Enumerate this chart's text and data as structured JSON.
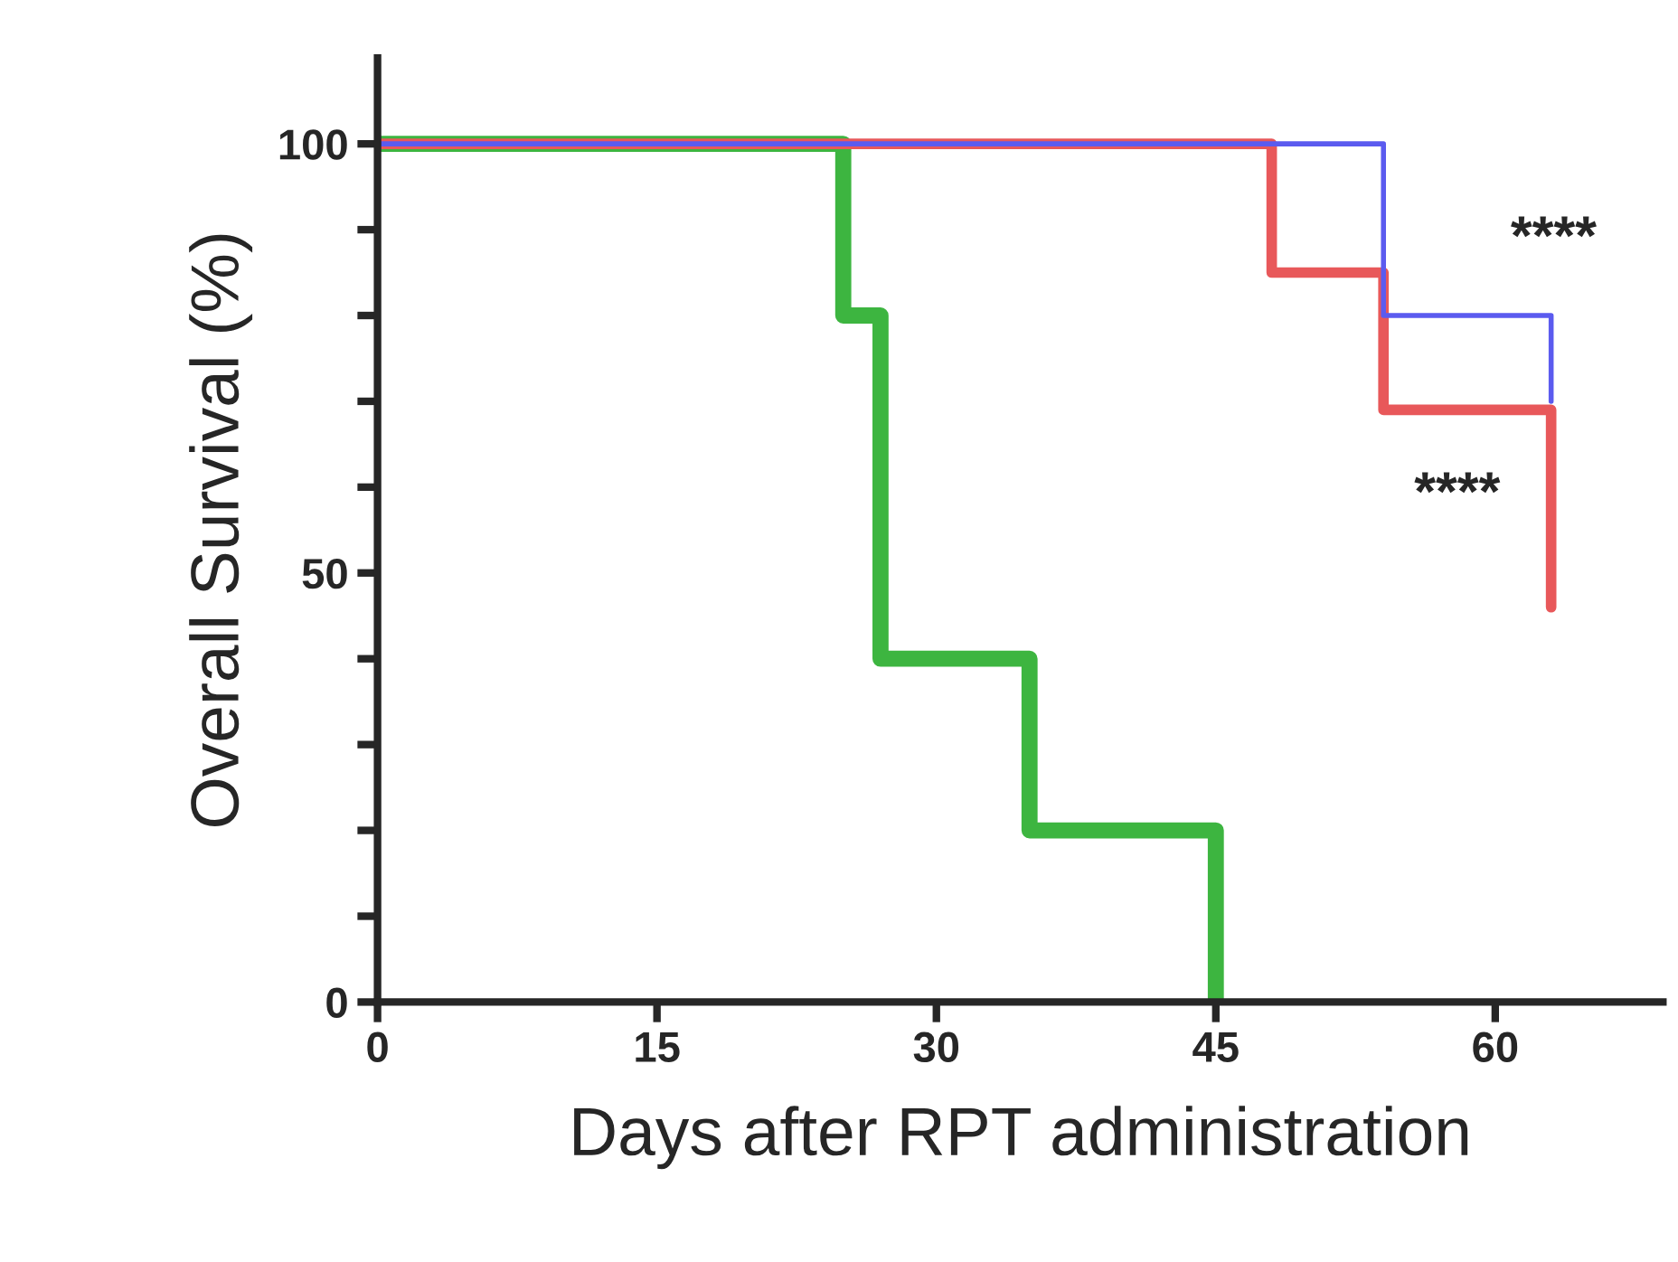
{
  "chart_data": {
    "type": "step",
    "xlabel": "Days after RPT administration",
    "ylabel": "Overall Survival (%)",
    "series": [
      {
        "color": "#3db540",
        "x": [
          0,
          25,
          27,
          35,
          45
        ],
        "values": [
          100,
          80,
          40,
          20,
          0
        ]
      },
      {
        "color": "#e8585a",
        "x": [
          0,
          48,
          54,
          63
        ],
        "values": [
          100,
          85,
          69,
          46
        ]
      },
      {
        "color": "#5b5bef",
        "x": [
          0,
          54,
          63
        ],
        "values": [
          100,
          80,
          70
        ]
      }
    ],
    "xlim": [
      0,
      69
    ],
    "xticks": [
      0,
      15,
      30,
      45,
      60
    ],
    "ylim": [
      0,
      110
    ],
    "yticks": [
      0,
      {
        "value": 10,
        "label": null
      },
      {
        "value": 20,
        "label": null
      },
      {
        "value": 30,
        "label": null
      },
      {
        "value": 40,
        "label": null
      },
      50,
      {
        "value": 60,
        "label": null
      },
      {
        "value": 70,
        "label": null
      },
      {
        "value": 80,
        "label": null
      },
      {
        "value": 90,
        "label": null
      },
      100
    ],
    "annotations": [
      "****",
      "****"
    ],
    "grid": false,
    "legend": false
  }
}
